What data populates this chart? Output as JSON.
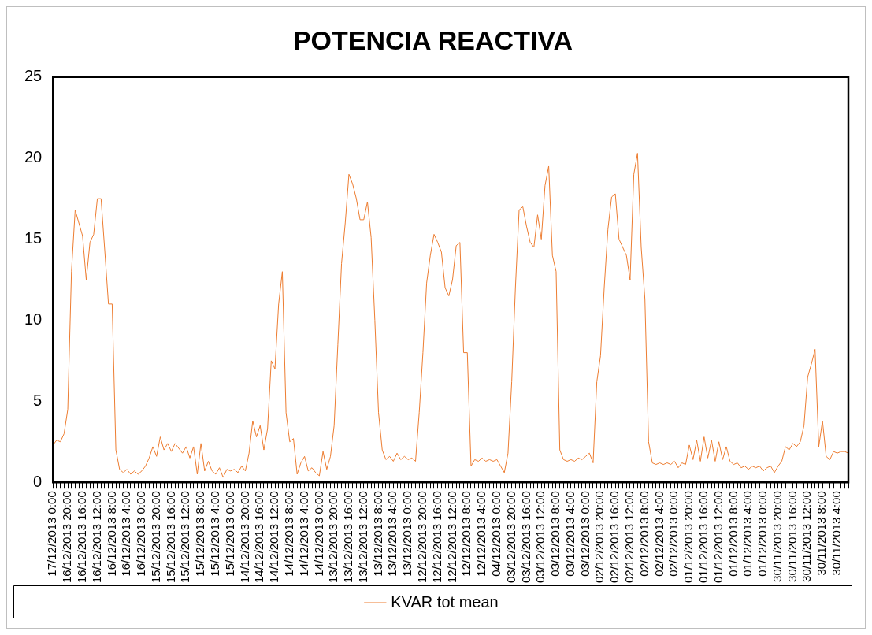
{
  "chart_data": {
    "type": "line",
    "title": "POTENCIA REACTIVA",
    "categories": [
      "17/12/2013 0:00",
      null,
      null,
      null,
      "16/12/2013 20:00",
      null,
      null,
      null,
      "16/12/2013 16:00",
      null,
      null,
      null,
      "16/12/2013 12:00",
      null,
      null,
      null,
      "16/12/2013 8:00",
      null,
      null,
      null,
      "16/12/2013 4:00",
      null,
      null,
      null,
      "16/12/2013 0:00",
      null,
      null,
      null,
      "15/12/2013 20:00",
      null,
      null,
      null,
      "15/12/2013 16:00",
      null,
      null,
      null,
      "15/12/2013 12:00",
      null,
      null,
      null,
      "15/12/2013 8:00",
      null,
      null,
      null,
      "15/12/2013 4:00",
      null,
      null,
      null,
      "15/12/2013 0:00",
      null,
      null,
      null,
      "14/12/2013 20:00",
      null,
      null,
      null,
      "14/12/2013 16:00",
      null,
      null,
      null,
      "14/12/2013 12:00",
      null,
      null,
      null,
      "14/12/2013 8:00",
      null,
      null,
      null,
      "14/12/2013 4:00",
      null,
      null,
      null,
      "14/12/2013 0:00",
      null,
      null,
      null,
      "13/12/2013 20:00",
      null,
      null,
      null,
      "13/12/2013 16:00",
      null,
      null,
      null,
      "13/12/2013 12:00",
      null,
      null,
      null,
      "13/12/2013 8:00",
      null,
      null,
      null,
      "13/12/2013 4:00",
      null,
      null,
      null,
      "13/12/2013 0:00",
      null,
      null,
      null,
      "12/12/2013 20:00",
      null,
      null,
      null,
      "12/12/2013 16:00",
      null,
      null,
      null,
      "12/12/2013 12:00",
      null,
      null,
      null,
      "12/12/2013 8:00",
      null,
      null,
      null,
      "12/12/2013 4:00",
      null,
      null,
      null,
      "04/12/2013 0:00",
      null,
      null,
      null,
      "03/12/2013 20:00",
      null,
      null,
      null,
      "03/12/2013 16:00",
      null,
      null,
      null,
      "03/12/2013 12:00",
      null,
      null,
      null,
      "03/12/2013 8:00",
      null,
      null,
      null,
      "03/12/2013 4:00",
      null,
      null,
      null,
      "03/12/2013 0:00",
      null,
      null,
      null,
      "02/12/2013 20:00",
      null,
      null,
      null,
      "02/12/2013 16:00",
      null,
      null,
      null,
      "02/12/2013 12:00",
      null,
      null,
      null,
      "02/12/2013 8:00",
      null,
      null,
      null,
      "02/12/2013 4:00",
      null,
      null,
      null,
      "02/12/2013 0:00",
      null,
      null,
      null,
      "01/12/2013 20:00",
      null,
      null,
      null,
      "01/12/2013 16:00",
      null,
      null,
      null,
      "01/12/2013 12:00",
      null,
      null,
      null,
      "01/12/2013 8:00",
      null,
      null,
      null,
      "01/12/2013 4:00",
      null,
      null,
      null,
      "01/12/2013 0:00",
      null,
      null,
      null,
      "30/11/2013 20:00",
      null,
      null,
      null,
      "30/11/2013 16:00",
      null,
      null,
      null,
      "30/11/2013 12:00",
      null,
      null,
      null,
      "30/11/2013 8:00",
      null,
      null,
      null,
      "30/11/2013 4:00",
      null,
      null,
      null
    ],
    "series": [
      {
        "name": "KVAR tot mean",
        "color": "#ed7d31",
        "values": [
          2.3,
          2.6,
          2.5,
          3.0,
          4.5,
          13,
          16.8,
          16,
          15.2,
          12.5,
          14.8,
          15.3,
          17.5,
          17.5,
          14.3,
          11,
          11,
          2,
          0.8,
          0.6,
          0.8,
          0.5,
          0.7,
          0.5,
          0.7,
          1.0,
          1.5,
          2.2,
          1.6,
          2.8,
          2.0,
          2.4,
          1.9,
          2.4,
          2.1,
          1.8,
          2.2,
          1.5,
          2.2,
          0.5,
          2.4,
          0.7,
          1.3,
          0.7,
          0.5,
          0.9,
          0.3,
          0.8,
          0.7,
          0.8,
          0.6,
          1.0,
          0.7,
          1.8,
          3.8,
          2.8,
          3.5,
          2.0,
          3.3,
          7.5,
          7.0,
          11,
          13,
          4.3,
          2.5,
          2.7,
          0.5,
          1.2,
          1.6,
          0.7,
          0.9,
          0.6,
          0.4,
          1.9,
          0.8,
          1.6,
          3.5,
          8.5,
          13.5,
          16,
          19,
          18.4,
          17.5,
          16.2,
          16.2,
          17.3,
          15.1,
          10,
          4.3,
          2,
          1.4,
          1.6,
          1.3,
          1.8,
          1.4,
          1.6,
          1.4,
          1.5,
          1.3,
          4.3,
          8,
          12.3,
          14,
          15.3,
          14.8,
          14.2,
          12,
          11.5,
          12.5,
          14.6,
          14.8,
          8,
          8,
          1,
          1.4,
          1.3,
          1.5,
          1.3,
          1.4,
          1.3,
          1.4,
          1.0,
          0.6,
          1.8,
          6.2,
          12,
          16.8,
          17,
          15.8,
          14.8,
          14.5,
          16.5,
          15,
          18.3,
          19.5,
          14,
          13,
          2,
          1.4,
          1.3,
          1.4,
          1.3,
          1.5,
          1.4,
          1.6,
          1.8,
          1.2,
          6.2,
          7.8,
          12,
          15.6,
          17.6,
          17.8,
          15,
          14.5,
          14,
          12.5,
          19,
          20.3,
          14.5,
          11.3,
          2.5,
          1.2,
          1.1,
          1.2,
          1.1,
          1.2,
          1.1,
          1.3,
          0.9,
          1.2,
          1.1,
          2.3,
          1.4,
          2.6,
          1.3,
          2.8,
          1.5,
          2.6,
          1.3,
          2.5,
          1.4,
          2.2,
          1.3,
          1.1,
          1.2,
          0.9,
          1.0,
          0.8,
          1.0,
          0.9,
          1.0,
          0.7,
          0.9,
          1.0,
          0.6,
          1.0,
          1.3,
          2.2,
          2.0,
          2.4,
          2.2,
          2.5,
          3.5,
          6.5,
          7.3,
          8.2,
          2.2,
          3.8,
          1.6,
          1.4,
          1.9,
          1.8,
          1.9,
          1.9,
          1.8
        ]
      }
    ],
    "ylim": [
      0,
      25
    ],
    "yticks": [
      0,
      5,
      10,
      15,
      20,
      25
    ],
    "legend": "bottom"
  }
}
